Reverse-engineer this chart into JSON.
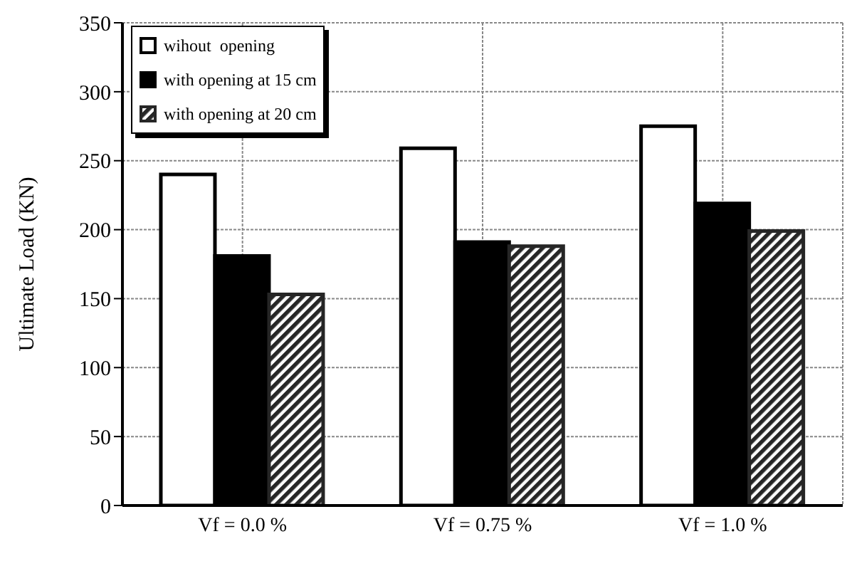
{
  "chart_data": {
    "type": "bar",
    "ylabel": "Ultimate Load (KN)",
    "categories": [
      "Vf = 0.0 %",
      "Vf = 0.75 %",
      "Vf =  1.0 %"
    ],
    "series": [
      {
        "name": "wihout  opening",
        "color": "#ffffff",
        "values": [
          240,
          259,
          275
        ]
      },
      {
        "name": "with opening at 15 cm",
        "color": "#000000",
        "values": [
          181,
          191,
          219
        ]
      },
      {
        "name": "with opening at 20 cm",
        "color": "#262626",
        "values": [
          153,
          188,
          199
        ]
      }
    ],
    "ylim": [
      0,
      350
    ],
    "yticks": [
      0,
      50,
      100,
      150,
      200,
      250,
      300,
      350
    ],
    "grid": true,
    "legend": "top left"
  }
}
